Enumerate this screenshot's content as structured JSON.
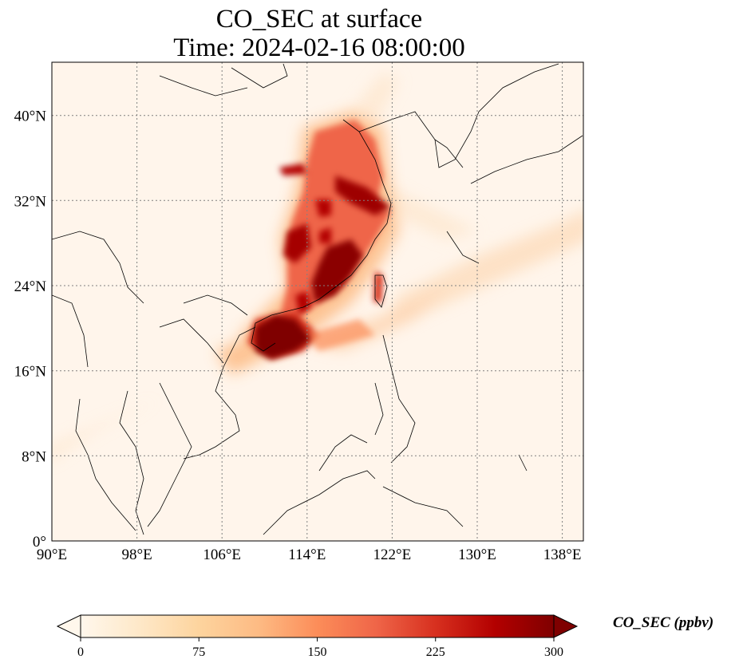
{
  "title": {
    "line1": "CO_SEC at surface",
    "line2": "Time: 2024-02-16 08:00:00"
  },
  "map": {
    "extent": {
      "lon_min": 90,
      "lon_max": 140,
      "lat_min": 0,
      "lat_max": 45
    },
    "gridlines": {
      "style": "dotted",
      "color": "#808080"
    },
    "lon_ticks": [
      {
        "value": 90,
        "label": "90°E"
      },
      {
        "value": 98,
        "label": "98°E"
      },
      {
        "value": 106,
        "label": "106°E"
      },
      {
        "value": 114,
        "label": "114°E"
      },
      {
        "value": 122,
        "label": "122°E"
      },
      {
        "value": 130,
        "label": "130°E"
      },
      {
        "value": 138,
        "label": "138°E"
      }
    ],
    "lat_ticks": [
      {
        "value": 0,
        "label": "0°"
      },
      {
        "value": 8,
        "label": "8°N"
      },
      {
        "value": 16,
        "label": "16°N"
      },
      {
        "value": 24,
        "label": "24°N"
      },
      {
        "value": 32,
        "label": "32°N"
      },
      {
        "value": 40,
        "label": "40°N"
      }
    ],
    "background_color": "#fff5eb"
  },
  "colorbar": {
    "label": "CO_SEC (ppbv)",
    "min": 0,
    "max": 300,
    "extend": "both",
    "colormap": "OrRd",
    "ticks": [
      {
        "value": 0,
        "label": "0"
      },
      {
        "value": 75,
        "label": "75"
      },
      {
        "value": 150,
        "label": "150"
      },
      {
        "value": 225,
        "label": "225"
      },
      {
        "value": 300,
        "label": "300"
      }
    ],
    "colors": [
      "#fff7ec",
      "#fee8c8",
      "#fdd49e",
      "#fdbb84",
      "#fc8d59",
      "#ef6548",
      "#d7301f",
      "#b30000",
      "#7f0000"
    ]
  }
}
